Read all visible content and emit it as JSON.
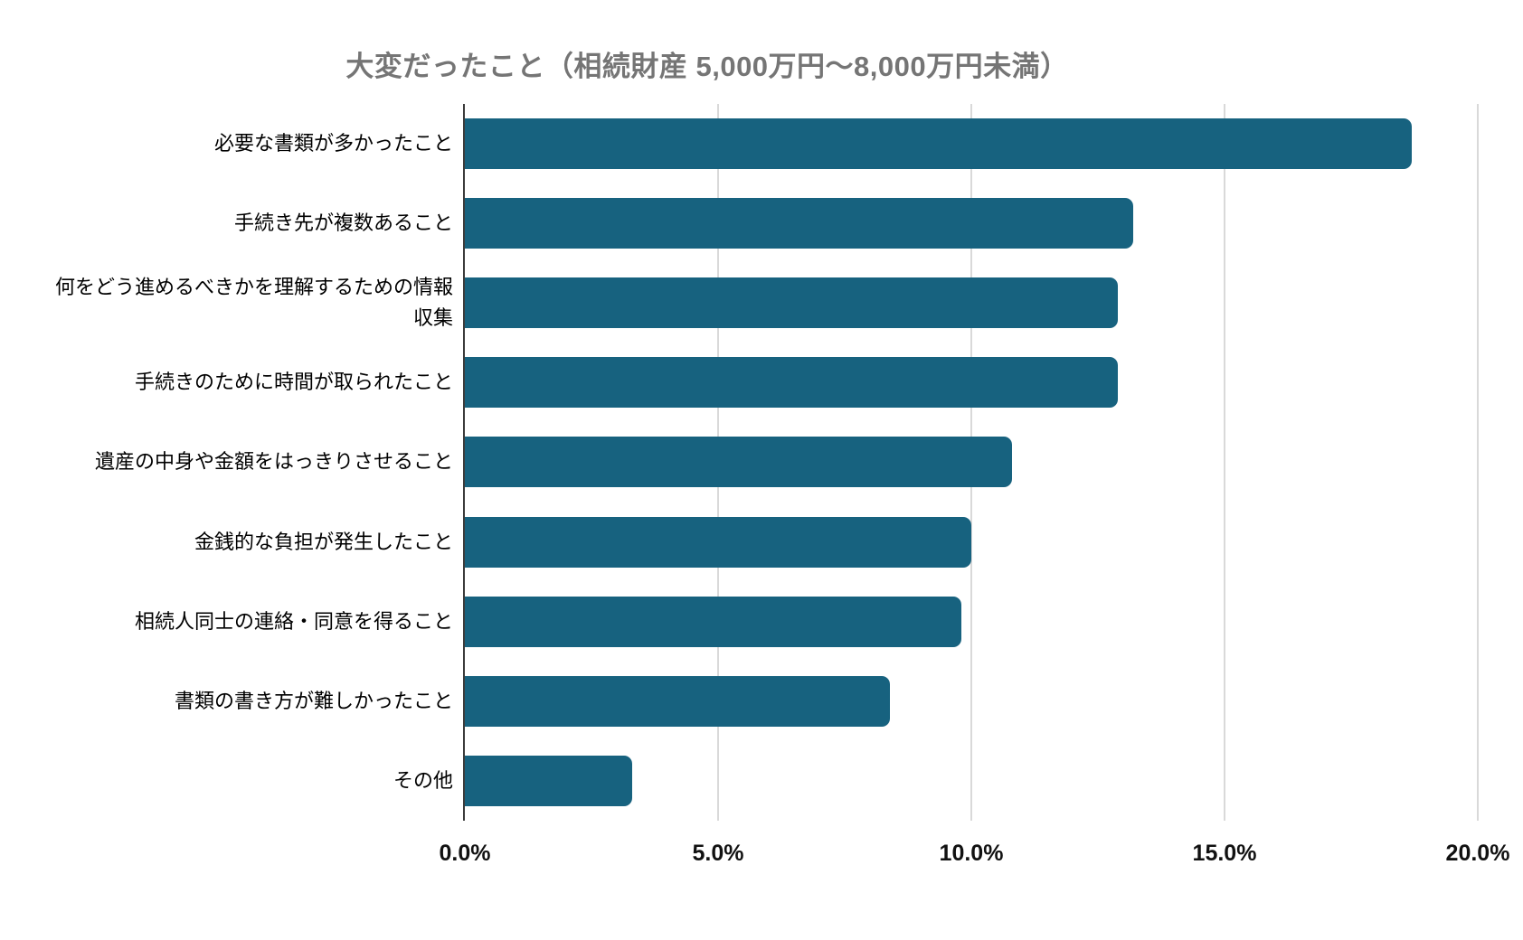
{
  "page": {
    "background": "#ffffff"
  },
  "chart_data": {
    "type": "bar",
    "orientation": "horizontal",
    "title": "大変だったこと（相続財産 5,000万円～8,000万円未満）",
    "categories": [
      "必要な書類が多かったこと",
      "手続き先が複数あること",
      "何をどう進めるべきかを理解するための情報収集",
      "手続きのために時間が取られたこと",
      "遺産の中身や金額をはっきりさせること",
      "金銭的な負担が発生したこと",
      "相続人同士の連絡・同意を得ること",
      "書類の書き方が難しかったこと",
      "その他"
    ],
    "values": [
      18.7,
      13.2,
      12.9,
      12.9,
      10.8,
      10.0,
      9.8,
      8.4,
      3.3
    ],
    "value_unit": "%",
    "xlim": [
      0,
      20
    ],
    "x_tick_values": [
      0,
      5,
      10,
      15,
      20
    ],
    "x_tick_labels": [
      "0.0%",
      "5.0%",
      "10.0%",
      "15.0%",
      "20.0%"
    ],
    "legend": "none",
    "grid": "vertical",
    "colors": {
      "bar": "#17627f",
      "title": "#757575",
      "gridline": "#d9d9d9",
      "axis_line": "#3c3c3c",
      "tick_label": "#111111",
      "category_label": "#000000"
    }
  }
}
